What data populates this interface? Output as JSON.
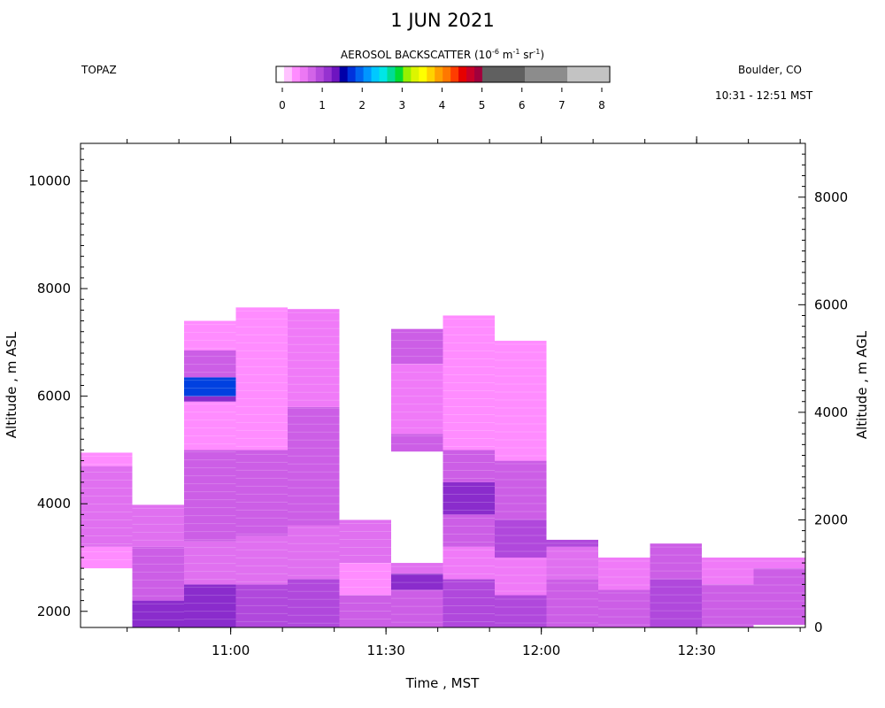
{
  "header": {
    "title": "1 JUN 2021",
    "instrument": "TOPAZ",
    "location": "Boulder, CO",
    "time_span": "10:31 - 12:51 MST"
  },
  "colorbar": {
    "title_main": "AEROSOL BACKSCATTER (10",
    "title_exp1": "-6",
    "title_mid1": " m",
    "title_exp2": "-1",
    "title_mid2": " sr",
    "title_exp3": "-1",
    "title_end": ")",
    "ticks": [
      "0",
      "1",
      "2",
      "3",
      "4",
      "5",
      "6",
      "7",
      "8"
    ],
    "colors": [
      "#ffffff",
      "#ffc3ff",
      "#ff8cff",
      "#ec78f4",
      "#d264e8",
      "#b54adc",
      "#9632d0",
      "#6e14c0",
      "#0000a8",
      "#0032dc",
      "#0064f0",
      "#0096ff",
      "#00c8ff",
      "#00e6e6",
      "#00dc96",
      "#00dc32",
      "#96f000",
      "#dcf500",
      "#ffff00",
      "#ffd200",
      "#ffa000",
      "#ff7800",
      "#ff3c00",
      "#e60000",
      "#c80028",
      "#a0003c",
      "#606060",
      "#606060",
      "#8c8c8c",
      "#8c8c8c",
      "#c3c3c3",
      "#c3c3c3"
    ]
  },
  "chart_data": {
    "type": "heatmap",
    "title": "1 JUN 2021",
    "xlabel": "Time , MST",
    "ylabel_left": "Altitude , m ASL",
    "ylabel_right": "Altitude , m AGL",
    "x_ticks": [
      "11:00",
      "11:30",
      "12:00",
      "12:30"
    ],
    "y_left_ticks": [
      2000,
      4000,
      6000,
      8000,
      10000
    ],
    "y_right_ticks": [
      0,
      2000,
      4000,
      6000,
      8000
    ],
    "x_range": [
      "10:31",
      "12:51"
    ],
    "y_left_range": [
      1700,
      10700
    ],
    "columns": [
      {
        "t_start": "10:31",
        "t_end": "10:41",
        "bottom_m": 2800,
        "top_m": 4950,
        "bands": [
          {
            "from": 2800,
            "to": 3200,
            "value": 0.4
          },
          {
            "from": 3200,
            "to": 4700,
            "value": 0.9
          },
          {
            "from": 4700,
            "to": 4950,
            "value": 0.4
          }
        ]
      },
      {
        "t_start": "10:41",
        "t_end": "10:51",
        "bottom_m": 1700,
        "top_m": 3980,
        "bands": [
          {
            "from": 1700,
            "to": 2200,
            "value": 1.4
          },
          {
            "from": 2200,
            "to": 3200,
            "value": 1.0
          },
          {
            "from": 3200,
            "to": 3980,
            "value": 0.9
          }
        ]
      },
      {
        "t_start": "10:51",
        "t_end": "11:01",
        "bottom_m": 1700,
        "top_m": 7400,
        "bands": [
          {
            "from": 1700,
            "to": 2500,
            "value": 1.5
          },
          {
            "from": 2500,
            "to": 3300,
            "value": 0.8
          },
          {
            "from": 3300,
            "to": 5000,
            "value": 1.0
          },
          {
            "from": 5000,
            "to": 5900,
            "value": 0.4
          },
          {
            "from": 5900,
            "to": 6000,
            "value": 1.4
          },
          {
            "from": 6000,
            "to": 6350,
            "value": 1.8
          },
          {
            "from": 6350,
            "to": 6850,
            "value": 1.1
          },
          {
            "from": 6850,
            "to": 7400,
            "value": 0.4
          }
        ]
      },
      {
        "t_start": "11:01",
        "t_end": "11:11",
        "bottom_m": 1700,
        "top_m": 7650,
        "bands": [
          {
            "from": 1700,
            "to": 2500,
            "value": 1.2
          },
          {
            "from": 2500,
            "to": 3400,
            "value": 0.7
          },
          {
            "from": 3400,
            "to": 5000,
            "value": 1.0
          },
          {
            "from": 5000,
            "to": 7650,
            "value": 0.4
          }
        ]
      },
      {
        "t_start": "11:11",
        "t_end": "11:21",
        "bottom_m": 1700,
        "top_m": 7620,
        "bands": [
          {
            "from": 1700,
            "to": 2600,
            "value": 1.2
          },
          {
            "from": 2600,
            "to": 3600,
            "value": 0.8
          },
          {
            "from": 3600,
            "to": 5800,
            "value": 1.0
          },
          {
            "from": 5800,
            "to": 7620,
            "value": 0.5
          }
        ]
      },
      {
        "t_start": "11:21",
        "t_end": "11:31",
        "bottom_m": 1700,
        "top_m": 3700,
        "bands": [
          {
            "from": 1700,
            "to": 2300,
            "value": 1.0
          },
          {
            "from": 2300,
            "to": 2900,
            "value": 0.4
          },
          {
            "from": 2900,
            "to": 3700,
            "value": 0.8
          }
        ]
      },
      {
        "t_start": "11:31",
        "t_end": "11:41",
        "bottom_m": 1700,
        "top_m": 2900,
        "bands": [
          {
            "from": 1700,
            "to": 2400,
            "value": 1.0
          },
          {
            "from": 2400,
            "to": 2700,
            "value": 1.4
          },
          {
            "from": 2700,
            "to": 2900,
            "value": 0.9
          }
        ]
      },
      {
        "t_start": "11:31",
        "t_end": "11:41",
        "bottom_m": 4970,
        "top_m": 7250,
        "bands": [
          {
            "from": 4970,
            "to": 5300,
            "value": 1.0
          },
          {
            "from": 5300,
            "to": 6600,
            "value": 0.6
          },
          {
            "from": 6600,
            "to": 7250,
            "value": 1.1
          }
        ]
      },
      {
        "t_start": "11:41",
        "t_end": "11:51",
        "bottom_m": 1700,
        "top_m": 7500,
        "bands": [
          {
            "from": 1700,
            "to": 2600,
            "value": 1.3
          },
          {
            "from": 2600,
            "to": 3200,
            "value": 0.6
          },
          {
            "from": 3200,
            "to": 3800,
            "value": 1.0
          },
          {
            "from": 3800,
            "to": 4400,
            "value": 1.5
          },
          {
            "from": 4400,
            "to": 5000,
            "value": 1.0
          },
          {
            "from": 5000,
            "to": 7500,
            "value": 0.4
          }
        ]
      },
      {
        "t_start": "11:51",
        "t_end": "12:01",
        "bottom_m": 1700,
        "top_m": 7030,
        "bands": [
          {
            "from": 1700,
            "to": 2300,
            "value": 1.2
          },
          {
            "from": 2300,
            "to": 3000,
            "value": 0.6
          },
          {
            "from": 3000,
            "to": 3700,
            "value": 1.3
          },
          {
            "from": 3700,
            "to": 4800,
            "value": 1.0
          },
          {
            "from": 4800,
            "to": 7030,
            "value": 0.4
          }
        ]
      },
      {
        "t_start": "12:01",
        "t_end": "12:11",
        "bottom_m": 1700,
        "top_m": 3330,
        "bands": [
          {
            "from": 1700,
            "to": 2600,
            "value": 1.1
          },
          {
            "from": 2600,
            "to": 3200,
            "value": 0.9
          },
          {
            "from": 3200,
            "to": 3330,
            "value": 1.3
          }
        ]
      },
      {
        "t_start": "12:11",
        "t_end": "12:21",
        "bottom_m": 1700,
        "top_m": 3000,
        "bands": [
          {
            "from": 1700,
            "to": 2400,
            "value": 1.0
          },
          {
            "from": 2400,
            "to": 3000,
            "value": 0.5
          }
        ]
      },
      {
        "t_start": "12:21",
        "t_end": "12:31",
        "bottom_m": 1700,
        "top_m": 3260,
        "bands": [
          {
            "from": 1700,
            "to": 2600,
            "value": 1.3
          },
          {
            "from": 2600,
            "to": 3260,
            "value": 1.0
          }
        ]
      },
      {
        "t_start": "12:31",
        "t_end": "12:41",
        "bottom_m": 1700,
        "top_m": 3000,
        "bands": [
          {
            "from": 1700,
            "to": 2500,
            "value": 1.1
          },
          {
            "from": 2500,
            "to": 3000,
            "value": 0.6
          }
        ]
      },
      {
        "t_start": "12:41",
        "t_end": "12:51",
        "bottom_m": 1750,
        "top_m": 3000,
        "bands": [
          {
            "from": 1750,
            "to": 2800,
            "value": 1.1
          },
          {
            "from": 2800,
            "to": 3000,
            "value": 0.6
          }
        ]
      }
    ]
  }
}
